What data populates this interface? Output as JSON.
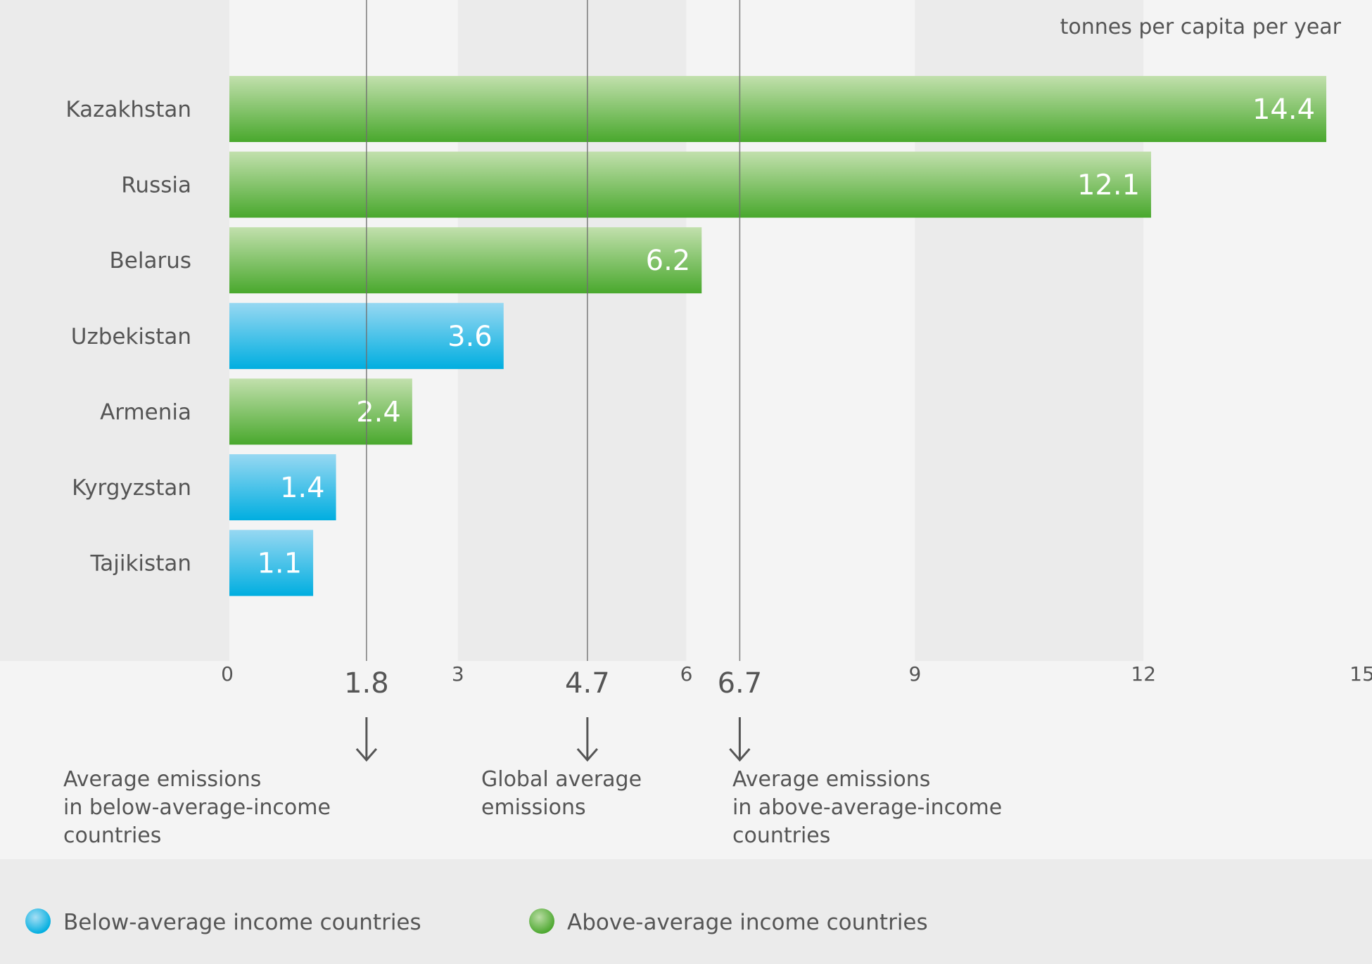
{
  "chart_data": {
    "type": "bar",
    "orientation": "horizontal",
    "unit_label": "tonnes per capita per year",
    "categories": [
      "Kazakhstan",
      "Russia",
      "Belarus",
      "Uzbekistan",
      "Armenia",
      "Kyrgyzstan",
      "Tajikistan"
    ],
    "values": [
      14.4,
      12.1,
      6.2,
      3.6,
      2.4,
      1.4,
      1.1
    ],
    "value_labels": [
      "14.4",
      "12.1",
      "6.2",
      "3.6",
      "2.4",
      "1.4",
      "1.1"
    ],
    "groups": [
      "above",
      "above",
      "above",
      "below",
      "above",
      "below",
      "below"
    ],
    "xlim": [
      0,
      15
    ],
    "xticks": [
      0,
      3,
      6,
      9,
      12,
      15
    ],
    "xtick_labels": [
      "0",
      "3",
      "6",
      "9",
      "12",
      "15"
    ],
    "reference_lines": [
      {
        "value": 1.8,
        "value_label": "1.8",
        "label_lines": [
          "Average emissions",
          "in below-average-income",
          "countries"
        ]
      },
      {
        "value": 4.7,
        "value_label": "4.7",
        "label_lines": [
          "Global average",
          "emissions"
        ]
      },
      {
        "value": 6.7,
        "value_label": "6.7",
        "label_lines": [
          "Average emissions",
          "in above-average-income",
          "countries"
        ]
      }
    ],
    "legend": [
      {
        "key": "below",
        "label": "Below-average income countries",
        "color": "#00aee0",
        "color_light": "#97d8f2"
      },
      {
        "key": "above",
        "label": "Above-average income countries",
        "color": "#49a82d",
        "color_light": "#c2e0ad"
      }
    ],
    "legend_position": "bottom",
    "grid": "alternating vertical bands"
  }
}
